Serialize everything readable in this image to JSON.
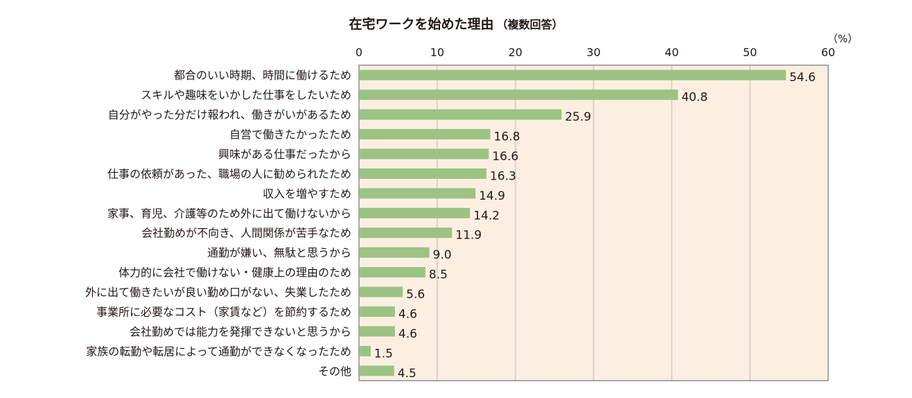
{
  "chart_data": {
    "type": "bar",
    "orientation": "horizontal",
    "title": "在宅ワークを始めた理由",
    "subtitle": "（複数回答）",
    "unit": "（%）",
    "xlim": [
      0,
      60
    ],
    "ticks": [
      0,
      10,
      20,
      30,
      40,
      50,
      60
    ],
    "grid": true,
    "colors": {
      "bar": "#9cc383",
      "plot_bg": "#fcefe2",
      "grid": "#d9d2c8",
      "frame": "#5a5a5a"
    },
    "categories": [
      "都合のいい時期、時間に働けるため",
      "スキルや趣味をいかした仕事をしたいため",
      "自分がやった分だけ報われ、働きがいがあるため",
      "自営で働きたかったため",
      "興味がある仕事だったから",
      "仕事の依頼があった、職場の人に勧められたため",
      "収入を増やすため",
      "家事、育児、介護等のため外に出て働けないから",
      "会社勤めが不向き、人間関係が苦手なため",
      "通勤が嫌い、無駄と思うから",
      "体力的に会社で働けない・健康上の理由のため",
      "外に出て働きたいが良い勤め口がない、失業したため",
      "事業所に必要なコスト（家賃など）を節約するため",
      "会社勤めでは能力を発揮できないと思うから",
      "家族の転勤や転居によって通勤ができなくなったため",
      "その他"
    ],
    "values": [
      54.6,
      40.8,
      25.9,
      16.8,
      16.6,
      16.3,
      14.9,
      14.2,
      11.9,
      9.0,
      8.5,
      5.6,
      4.6,
      4.6,
      1.5,
      4.5
    ],
    "value_labels": [
      "54.6",
      "40.8",
      "25.9",
      "16.8",
      "16.6",
      "16.3",
      "14.9",
      "14.2",
      "11.9",
      "9.0",
      "8.5",
      "5.6",
      "4.6",
      "4.6",
      "1.5",
      "4.5"
    ]
  }
}
